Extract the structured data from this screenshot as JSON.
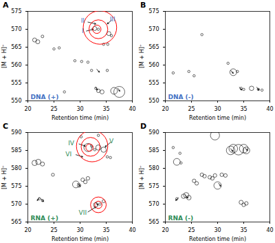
{
  "chart_data": [
    {
      "type": "scatter",
      "panel": "A",
      "title": "DNA (+)",
      "title_color": "#4472C4",
      "xlabel": "Retention time (min)",
      "ylabel": "[M + H]⁺",
      "xlim": [
        20,
        40
      ],
      "ylim": [
        550,
        575
      ],
      "xticks": [
        20,
        25,
        30,
        35,
        40
      ],
      "yticks": [
        550,
        555,
        560,
        565,
        570,
        575
      ],
      "marker": "open circle",
      "x": [
        21.3,
        21.9,
        22.8,
        25.0,
        26.0,
        27.0,
        29.0,
        30.3,
        31.5,
        32.2,
        33.0,
        33.5,
        34.2,
        34.5,
        35.3,
        35.2,
        35.5,
        36.0,
        36.5,
        37.5,
        32.8,
        33.5
      ],
      "values": [
        567.0,
        566.5,
        568.0,
        564.5,
        564.8,
        552.5,
        561.2,
        561.0,
        560.8,
        558.5,
        553.5,
        552.8,
        552.5,
        565.8,
        565.8,
        558.5,
        568.8,
        568.2,
        552.8,
        552.5,
        570.2,
        570.0
      ],
      "sizes": [
        18,
        18,
        8,
        6,
        6,
        6,
        6,
        6,
        6,
        6,
        6,
        14,
        18,
        6,
        6,
        6,
        18,
        6,
        50,
        130,
        18,
        6
      ],
      "arrows": [
        {
          "x1": 33.2,
          "y1": 558.8,
          "x2": 33.7,
          "y2": 558.0
        },
        {
          "x1": 33.0,
          "y1": 553.8,
          "x2": 33.3,
          "y2": 553.0
        },
        {
          "x1": 37.2,
          "y1": 553.5,
          "x2": 37.6,
          "y2": 552.7
        },
        {
          "x1": 31.2,
          "y1": 569.5,
          "x2": 32.5,
          "y2": 570.0
        },
        {
          "x1": 31.5,
          "y1": 572.0,
          "x2": 33.0,
          "y2": 571.5
        },
        {
          "x1": 36.0,
          "y1": 572.5,
          "x2": 35.2,
          "y2": 571.5
        }
      ],
      "circles": [
        {
          "cx": 33.2,
          "cy": 570.0,
          "r": 0.8,
          "color": "red"
        },
        {
          "cx": 33.5,
          "cy": 570.0,
          "r": 1.8,
          "color": "red"
        },
        {
          "cx": 33.8,
          "cy": 570.5,
          "r": 3.2,
          "color": "red"
        }
      ],
      "annotations": [
        {
          "text": "I",
          "x": 30.5,
          "y": 569.5,
          "color": "#4472C4"
        },
        {
          "text": "II",
          "x": 30.5,
          "y": 572.3,
          "color": "#4472C4"
        },
        {
          "text": "III",
          "x": 36.2,
          "y": 572.8,
          "color": "#4472C4"
        }
      ]
    },
    {
      "type": "scatter",
      "panel": "B",
      "title": "DNA (-)",
      "title_color": "#4472C4",
      "xlabel": "Retention time (min)",
      "ylabel": "[M + H]⁺",
      "xlim": [
        20,
        40
      ],
      "ylim": [
        550,
        575
      ],
      "xticks": [
        20,
        25,
        30,
        35,
        40
      ],
      "yticks": [
        550,
        555,
        560,
        565,
        570,
        575
      ],
      "marker": "open circle",
      "x": [
        21.5,
        24.5,
        27.0,
        25.5,
        32.0,
        33.0,
        33.8,
        34.5,
        35.0,
        36.5,
        37.8,
        38.5
      ],
      "values": [
        557.8,
        558.2,
        568.5,
        557.0,
        560.5,
        558.0,
        558.2,
        553.5,
        553.2,
        553.5,
        553.2,
        553.0
      ],
      "sizes": [
        6,
        6,
        6,
        6,
        6,
        50,
        6,
        6,
        6,
        22,
        6,
        6
      ],
      "arrows": [
        {
          "x1": 32.5,
          "y1": 558.5,
          "x2": 33.0,
          "y2": 557.7
        },
        {
          "x1": 34.2,
          "y1": 553.8,
          "x2": 34.6,
          "y2": 553.0
        },
        {
          "x1": 37.5,
          "y1": 553.8,
          "x2": 37.9,
          "y2": 553.0
        }
      ],
      "circles": [],
      "annotations": []
    },
    {
      "type": "scatter",
      "panel": "C",
      "title": "RNA (+)",
      "title_color": "#2E8B57",
      "xlabel": "Retention time (min)",
      "ylabel": "[M + H]⁺",
      "xlim": [
        20,
        40
      ],
      "ylim": [
        565,
        590
      ],
      "xticks": [
        20,
        25,
        30,
        35,
        40
      ],
      "yticks": [
        565,
        570,
        575,
        580,
        585,
        590
      ],
      "marker": "open circle",
      "x": [
        21.3,
        22.0,
        22.8,
        24.8,
        22.2,
        22.8,
        29.2,
        29.8,
        30.5,
        31.0,
        31.5,
        31.5,
        32.2,
        32.8,
        33.5,
        34.5,
        35.2,
        35.8,
        33.0,
        33.8,
        34.5,
        30.2,
        33.5
      ],
      "values": [
        581.5,
        581.8,
        581.2,
        578.2,
        571.5,
        571.0,
        575.5,
        575.2,
        576.8,
        576.2,
        577.2,
        585.8,
        586.2,
        585.2,
        585.8,
        585.2,
        583.2,
        583.0,
        569.8,
        570.0,
        570.8,
        588.8,
        589.2
      ],
      "sizes": [
        30,
        30,
        18,
        10,
        6,
        6,
        50,
        14,
        14,
        14,
        14,
        70,
        6,
        6,
        30,
        30,
        6,
        6,
        22,
        6,
        10,
        6,
        6
      ],
      "arrows": [
        {
          "x1": 22.2,
          "y1": 571.8,
          "x2": 21.8,
          "y2": 571.0
        },
        {
          "x1": 22.5,
          "y1": 571.5,
          "x2": 23.0,
          "y2": 570.7
        },
        {
          "x1": 29.5,
          "y1": 575.8,
          "x2": 30.0,
          "y2": 575.0
        },
        {
          "x1": 33.0,
          "y1": 570.5,
          "x2": 33.4,
          "y2": 569.7
        },
        {
          "x1": 29.8,
          "y1": 586.8,
          "x2": 31.0,
          "y2": 586.2
        },
        {
          "x1": 35.8,
          "y1": 587.2,
          "x2": 34.8,
          "y2": 586.0
        },
        {
          "x1": 29.2,
          "y1": 583.8,
          "x2": 30.5,
          "y2": 583.2
        },
        {
          "x1": 31.5,
          "y1": 567.8,
          "x2": 33.0,
          "y2": 569.2
        }
      ],
      "circles": [
        {
          "cx": 31.8,
          "cy": 585.8,
          "r": 0.7,
          "color": "red"
        },
        {
          "cx": 32.0,
          "cy": 586.0,
          "r": 1.8,
          "color": "red"
        },
        {
          "cx": 32.3,
          "cy": 586.2,
          "r": 3.0,
          "color": "red"
        },
        {
          "cx": 33.5,
          "cy": 569.8,
          "r": 0.7,
          "color": "red"
        },
        {
          "cx": 33.5,
          "cy": 569.8,
          "r": 1.5,
          "color": "red"
        }
      ],
      "annotations": [
        {
          "text": "IV",
          "x": 28.3,
          "y": 587.0,
          "color": "#2E8B57"
        },
        {
          "text": "V",
          "x": 36.0,
          "y": 587.5,
          "color": "#2E8B57"
        },
        {
          "text": "VI",
          "x": 27.8,
          "y": 584.0,
          "color": "#2E8B57"
        },
        {
          "text": "VII",
          "x": 30.5,
          "y": 567.5,
          "color": "#2E8B57"
        }
      ]
    },
    {
      "type": "scatter",
      "panel": "D",
      "title": "RNA (-)",
      "title_color": "#2E8B57",
      "xlabel": "Retention time (min)",
      "ylabel": "[M + H]⁺",
      "xlim": [
        20,
        40
      ],
      "ylim": [
        565,
        590
      ],
      "xticks": [
        20,
        25,
        30,
        35,
        40
      ],
      "yticks": [
        565,
        570,
        575,
        580,
        585,
        590
      ],
      "marker": "open circle",
      "x": [
        21.5,
        22.2,
        23.0,
        23.5,
        24.0,
        24.5,
        22.2,
        25.5,
        26.0,
        27.0,
        27.5,
        28.5,
        29.0,
        29.5,
        30.0,
        30.8,
        31.5,
        29.5,
        32.5,
        33.0,
        34.0,
        35.0,
        35.5,
        34.5,
        35.0,
        35.5,
        22.8
      ],
      "values": [
        585.8,
        581.8,
        581.5,
        572.2,
        572.5,
        571.8,
        571.5,
        576.5,
        575.8,
        578.2,
        577.8,
        577.5,
        577.2,
        578.0,
        575.2,
        578.2,
        578.0,
        589.2,
        585.0,
        585.5,
        585.2,
        585.5,
        585.0,
        570.5,
        569.8,
        570.2,
        584.2
      ],
      "sizes": [
        6,
        50,
        6,
        22,
        30,
        22,
        6,
        14,
        14,
        14,
        14,
        14,
        14,
        14,
        60,
        14,
        14,
        90,
        80,
        80,
        120,
        80,
        50,
        18,
        14,
        14,
        6
      ],
      "arrows": [
        {
          "x1": 22.5,
          "y1": 571.8,
          "x2": 22.0,
          "y2": 571.0
        },
        {
          "x1": 23.8,
          "y1": 572.5,
          "x2": 24.3,
          "y2": 571.7
        },
        {
          "x1": 30.2,
          "y1": 575.8,
          "x2": 30.6,
          "y2": 575.0
        },
        {
          "x1": 32.5,
          "y1": 585.5,
          "x2": 32.9,
          "y2": 584.7
        },
        {
          "x1": 35.2,
          "y1": 585.8,
          "x2": 35.7,
          "y2": 585.0
        }
      ],
      "circles": [],
      "annotations": []
    }
  ]
}
